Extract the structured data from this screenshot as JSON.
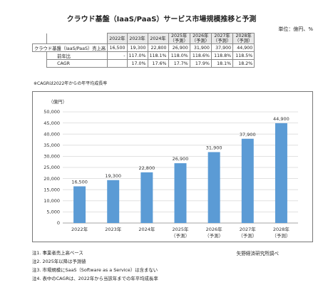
{
  "title": "クラウド基盤（IaaS/PaaS）サービス市場規模推移と予測",
  "unit_label": "単位：億円、%",
  "table": {
    "years": [
      "2022年",
      "2023年",
      "2024年",
      "2025年",
      "2026年",
      "2027年",
      "2028年"
    ],
    "forecast_tag": "（予測）",
    "rows": [
      {
        "label": "クラウド基盤（IaaS/PaaS）売上高",
        "values": [
          "16,500",
          "19,300",
          "22,800",
          "26,900",
          "31,900",
          "37,900",
          "44,900"
        ]
      },
      {
        "label": "前年比",
        "values": [
          "-",
          "117.0%",
          "118.1%",
          "118.0%",
          "118.6%",
          "118.8%",
          "118.5%"
        ]
      },
      {
        "label": "CAGR",
        "values": [
          "",
          "17.0%",
          "17.6%",
          "17.7%",
          "17.9%",
          "18.1%",
          "18.2%"
        ]
      }
    ]
  },
  "table_note": "※CAGRは2022年からの年平均成長率",
  "chart_data": {
    "type": "bar",
    "categories": [
      "2022年",
      "2023年",
      "2024年",
      "2025年（予測）",
      "2026年（予測）",
      "2027年（予測）",
      "2028年（予測）"
    ],
    "values": [
      16500,
      19300,
      22800,
      26900,
      31900,
      37900,
      44900
    ],
    "value_labels": [
      "16,500",
      "19,300",
      "22,800",
      "26,900",
      "31,900",
      "37,900",
      "44,900"
    ],
    "ylabel": "（億円）",
    "ylim": [
      0,
      50000
    ],
    "yticks": [
      0,
      5000,
      10000,
      15000,
      20000,
      25000,
      30000,
      35000,
      40000,
      45000,
      50000
    ],
    "ytick_labels": [
      "0",
      "5,000",
      "10,000",
      "15,000",
      "20,000",
      "25,000",
      "30,000",
      "35,000",
      "40,000",
      "45,000",
      "50,000"
    ],
    "grid": true,
    "bar_color": "#5b9bd5"
  },
  "footnotes": [
    "注1. 事業者売上高ベース",
    "注2. 2025年以降は予測値",
    "注3. 市場規模にSaaS（Software as a Service）は含まない",
    "注4. 表中のCAGRは、2022年から当該年までの年平均成長率"
  ],
  "source": "矢野経済研究所調べ"
}
